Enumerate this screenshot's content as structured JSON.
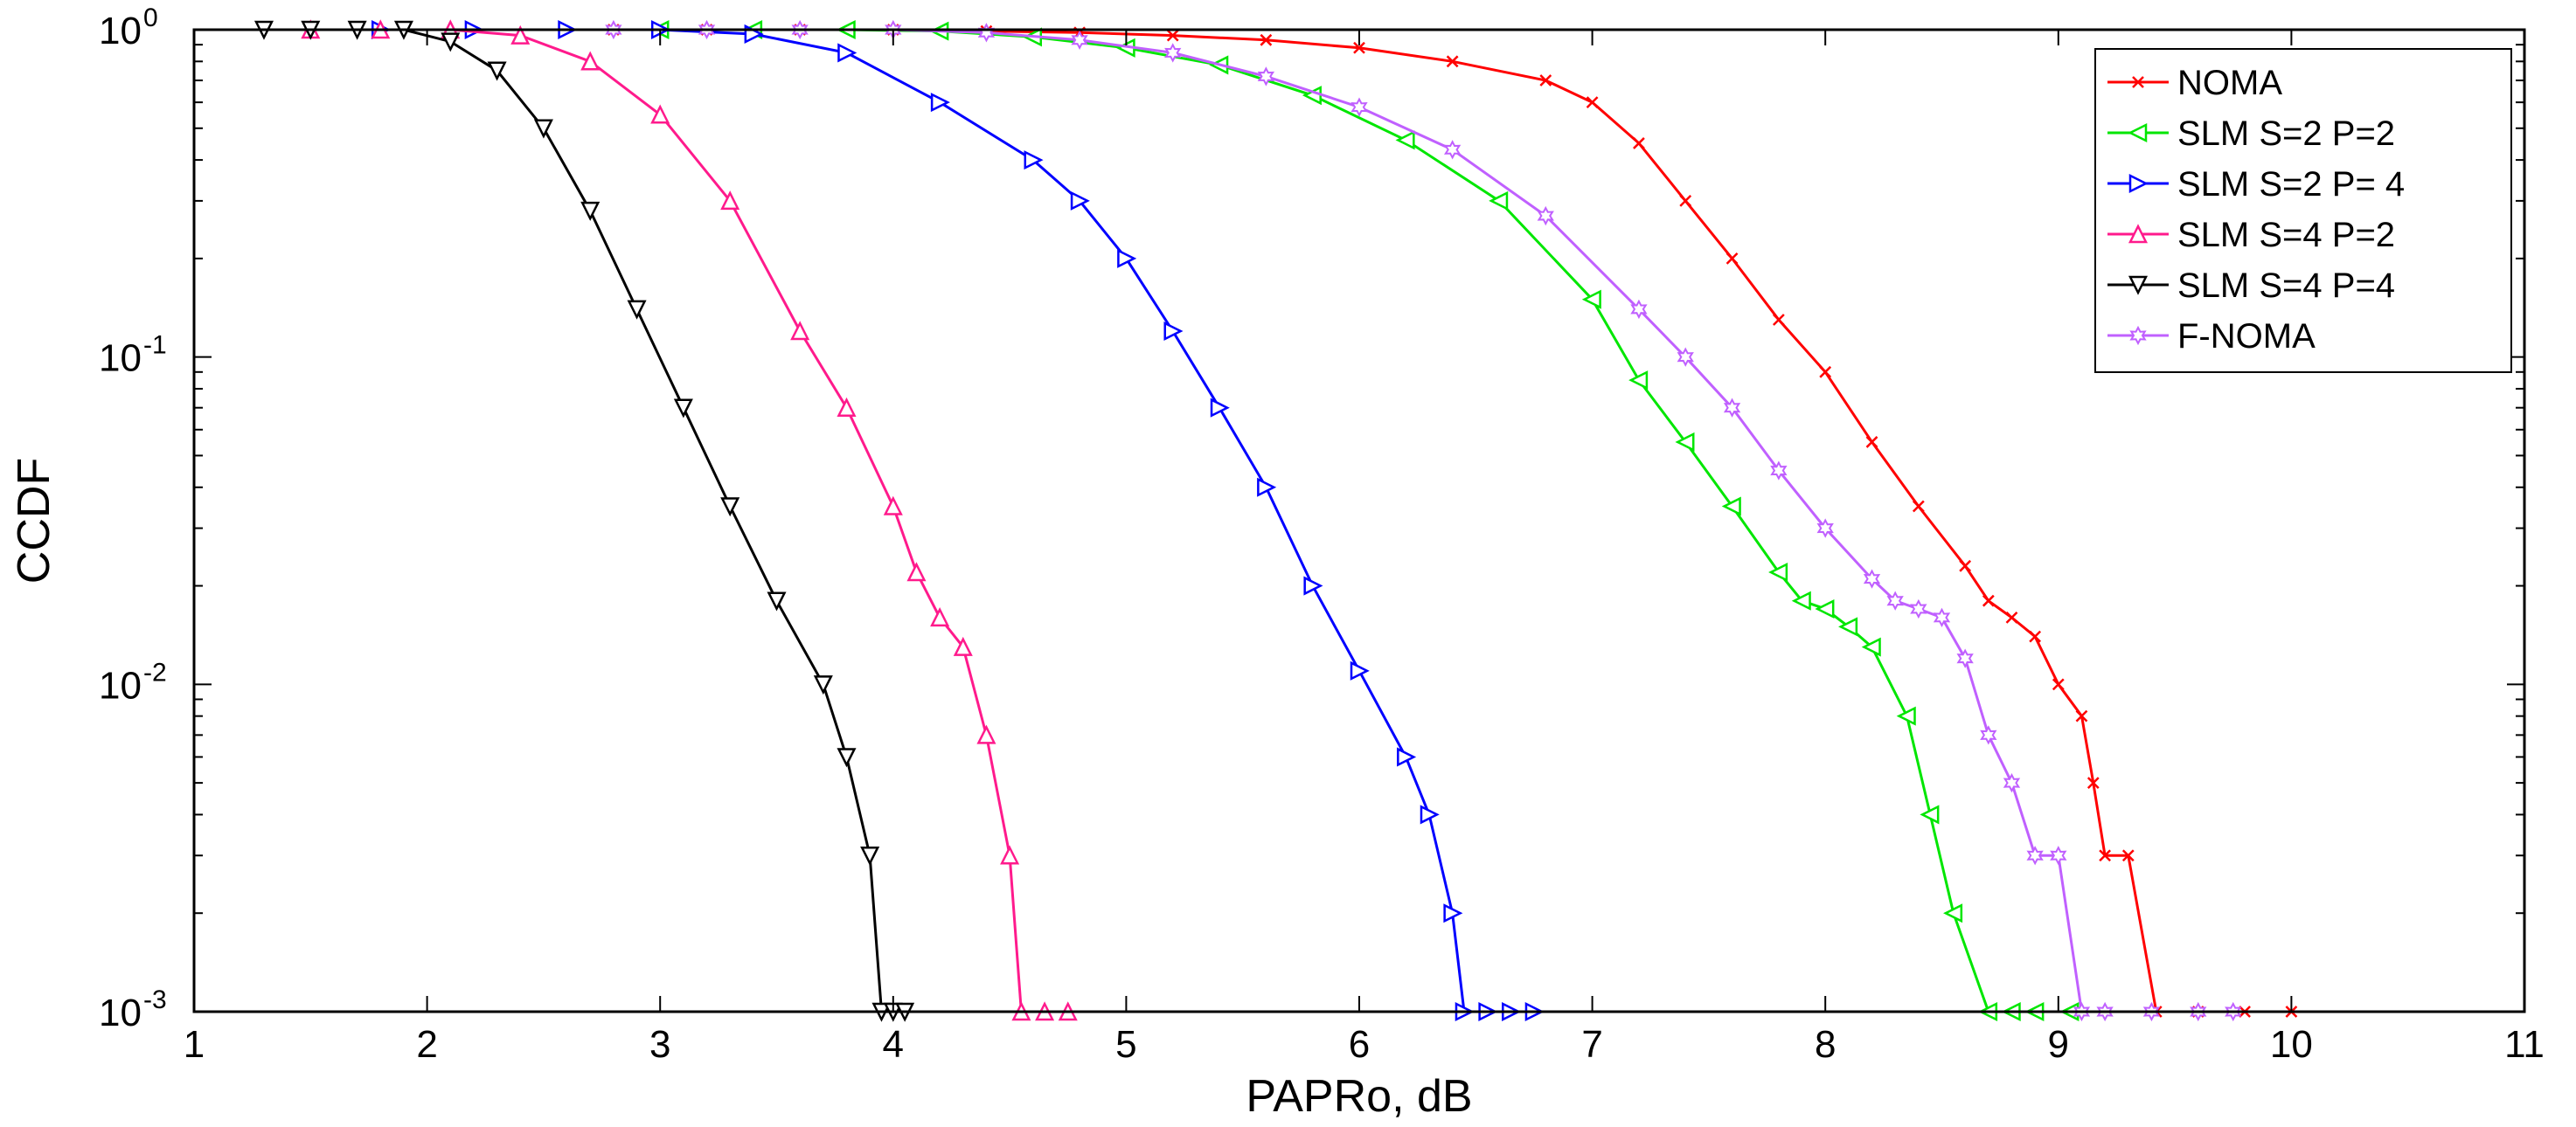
{
  "chart_data": {
    "type": "line",
    "title": "",
    "xlabel": "PAPRo, dB",
    "ylabel": "CCDF",
    "xlim": [
      1,
      11
    ],
    "ylim": [
      0.001,
      1
    ],
    "yscale": "log",
    "xticks": [
      1,
      2,
      3,
      4,
      5,
      6,
      7,
      8,
      9,
      10,
      11
    ],
    "xtick_labels": [
      "1",
      "2",
      "3",
      "4",
      "5",
      "6",
      "7",
      "8",
      "9",
      "10",
      "11"
    ],
    "yticks": [
      1,
      0.1,
      0.01,
      0.001
    ],
    "ytick_labels": [
      {
        "base": "10",
        "exp": "0"
      },
      {
        "base": "10",
        "exp": "-1"
      },
      {
        "base": "10",
        "exp": "-2"
      },
      {
        "base": "10",
        "exp": "-3"
      }
    ],
    "grid": false,
    "legend_position": "top-right",
    "series": [
      {
        "name": "NOMA",
        "color": "#ff0000",
        "marker": "x",
        "points": [
          [
            2.8,
            1
          ],
          [
            3.2,
            1
          ],
          [
            3.6,
            1
          ],
          [
            4.0,
            1
          ],
          [
            4.4,
            0.99
          ],
          [
            4.8,
            0.98
          ],
          [
            5.2,
            0.96
          ],
          [
            5.6,
            0.93
          ],
          [
            6.0,
            0.88
          ],
          [
            6.4,
            0.8
          ],
          [
            6.8,
            0.7
          ],
          [
            7.0,
            0.6
          ],
          [
            7.2,
            0.45
          ],
          [
            7.4,
            0.3
          ],
          [
            7.6,
            0.2
          ],
          [
            7.8,
            0.13
          ],
          [
            8.0,
            0.09
          ],
          [
            8.2,
            0.055
          ],
          [
            8.4,
            0.035
          ],
          [
            8.6,
            0.023
          ],
          [
            8.7,
            0.018
          ],
          [
            8.8,
            0.016
          ],
          [
            8.9,
            0.014
          ],
          [
            9.0,
            0.01
          ],
          [
            9.1,
            0.008
          ],
          [
            9.15,
            0.005
          ],
          [
            9.2,
            0.003
          ],
          [
            9.3,
            0.003
          ],
          [
            9.42,
            0.001
          ],
          [
            9.6,
            0.001
          ],
          [
            9.8,
            0.001
          ],
          [
            10.0,
            0.001
          ]
        ]
      },
      {
        "name": "SLM S=2 P=2",
        "color": "#00e600",
        "marker": "triangle-left",
        "points": [
          [
            3.0,
            1
          ],
          [
            3.4,
            1
          ],
          [
            3.8,
            1
          ],
          [
            4.2,
            0.99
          ],
          [
            4.6,
            0.95
          ],
          [
            5.0,
            0.88
          ],
          [
            5.4,
            0.78
          ],
          [
            5.8,
            0.63
          ],
          [
            6.2,
            0.46
          ],
          [
            6.6,
            0.3
          ],
          [
            7.0,
            0.15
          ],
          [
            7.2,
            0.085
          ],
          [
            7.4,
            0.055
          ],
          [
            7.6,
            0.035
          ],
          [
            7.8,
            0.022
          ],
          [
            7.9,
            0.018
          ],
          [
            8.0,
            0.017
          ],
          [
            8.1,
            0.015
          ],
          [
            8.2,
            0.013
          ],
          [
            8.35,
            0.008
          ],
          [
            8.45,
            0.004
          ],
          [
            8.55,
            0.002
          ],
          [
            8.7,
            0.001
          ],
          [
            8.8,
            0.001
          ],
          [
            8.9,
            0.001
          ],
          [
            9.05,
            0.001
          ]
        ]
      },
      {
        "name": "SLM S=2 P= 4",
        "color": "#0000ff",
        "marker": "triangle-right",
        "points": [
          [
            1.8,
            1
          ],
          [
            2.2,
            1
          ],
          [
            2.6,
            1
          ],
          [
            3.0,
            1
          ],
          [
            3.4,
            0.97
          ],
          [
            3.8,
            0.85
          ],
          [
            4.2,
            0.6
          ],
          [
            4.6,
            0.4
          ],
          [
            4.8,
            0.3
          ],
          [
            5.0,
            0.2
          ],
          [
            5.2,
            0.12
          ],
          [
            5.4,
            0.07
          ],
          [
            5.6,
            0.04
          ],
          [
            5.8,
            0.02
          ],
          [
            6.0,
            0.011
          ],
          [
            6.2,
            0.006
          ],
          [
            6.3,
            0.004
          ],
          [
            6.4,
            0.002
          ],
          [
            6.45,
            0.001
          ],
          [
            6.55,
            0.001
          ],
          [
            6.65,
            0.001
          ],
          [
            6.75,
            0.001
          ]
        ]
      },
      {
        "name": "SLM S=4 P=2",
        "color": "#ff1a8c",
        "marker": "triangle-up",
        "points": [
          [
            1.5,
            1
          ],
          [
            1.8,
            1
          ],
          [
            2.1,
            1
          ],
          [
            2.4,
            0.96
          ],
          [
            2.7,
            0.8
          ],
          [
            3.0,
            0.55
          ],
          [
            3.3,
            0.3
          ],
          [
            3.6,
            0.12
          ],
          [
            3.8,
            0.07
          ],
          [
            4.0,
            0.035
          ],
          [
            4.1,
            0.022
          ],
          [
            4.2,
            0.016
          ],
          [
            4.3,
            0.013
          ],
          [
            4.4,
            0.007
          ],
          [
            4.5,
            0.003
          ],
          [
            4.55,
            0.001
          ],
          [
            4.65,
            0.001
          ],
          [
            4.75,
            0.001
          ]
        ]
      },
      {
        "name": "SLM S=4 P=4",
        "color": "#000000",
        "marker": "triangle-down",
        "points": [
          [
            1.3,
            1
          ],
          [
            1.5,
            1
          ],
          [
            1.7,
            1
          ],
          [
            1.9,
            1
          ],
          [
            2.1,
            0.92
          ],
          [
            2.3,
            0.75
          ],
          [
            2.5,
            0.5
          ],
          [
            2.7,
            0.28
          ],
          [
            2.9,
            0.14
          ],
          [
            3.1,
            0.07
          ],
          [
            3.3,
            0.035
          ],
          [
            3.5,
            0.018
          ],
          [
            3.7,
            0.01
          ],
          [
            3.8,
            0.006
          ],
          [
            3.9,
            0.003
          ],
          [
            3.95,
            0.001
          ],
          [
            4.0,
            0.001
          ],
          [
            4.05,
            0.001
          ]
        ]
      },
      {
        "name": "F-NOMA",
        "color": "#c060ff",
        "marker": "hexagram",
        "points": [
          [
            2.8,
            1
          ],
          [
            3.2,
            1
          ],
          [
            3.6,
            1
          ],
          [
            4.0,
            1
          ],
          [
            4.4,
            0.98
          ],
          [
            4.8,
            0.93
          ],
          [
            5.2,
            0.85
          ],
          [
            5.6,
            0.72
          ],
          [
            6.0,
            0.58
          ],
          [
            6.4,
            0.43
          ],
          [
            6.8,
            0.27
          ],
          [
            7.2,
            0.14
          ],
          [
            7.4,
            0.1
          ],
          [
            7.6,
            0.07
          ],
          [
            7.8,
            0.045
          ],
          [
            8.0,
            0.03
          ],
          [
            8.2,
            0.021
          ],
          [
            8.3,
            0.018
          ],
          [
            8.4,
            0.017
          ],
          [
            8.5,
            0.016
          ],
          [
            8.6,
            0.012
          ],
          [
            8.7,
            0.007
          ],
          [
            8.8,
            0.005
          ],
          [
            8.9,
            0.003
          ],
          [
            9.0,
            0.003
          ],
          [
            9.1,
            0.001
          ],
          [
            9.2,
            0.001
          ],
          [
            9.4,
            0.001
          ],
          [
            9.6,
            0.001
          ],
          [
            9.75,
            0.001
          ]
        ]
      }
    ]
  }
}
